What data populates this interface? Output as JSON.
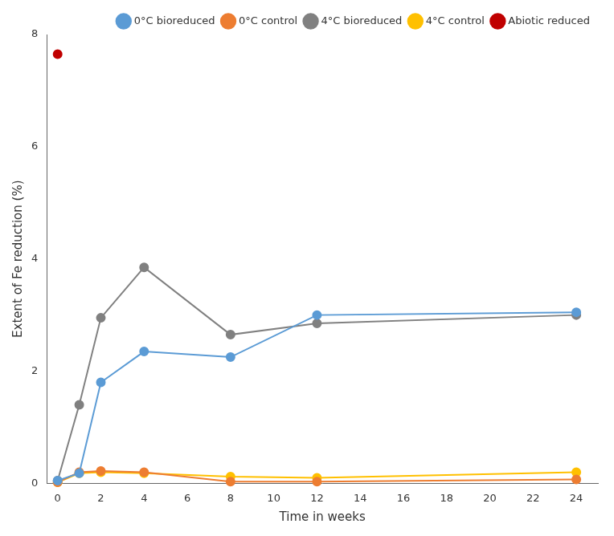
{
  "chart_data": {
    "type": "line",
    "xlabel": "Time in weeks",
    "ylabel": "Extent of Fe reduction (%)",
    "xlim": [
      -0.5,
      25
    ],
    "ylim": [
      0,
      8
    ],
    "xticks": [
      0,
      2,
      4,
      6,
      8,
      10,
      12,
      14,
      16,
      18,
      20,
      22,
      24
    ],
    "yticks": [
      0,
      2,
      4,
      6,
      8
    ],
    "grid": false,
    "legend": "upper right",
    "marker": "circle",
    "series": [
      {
        "name": "0°C bioreduced",
        "color": "#5B9BD5",
        "type": "line",
        "x": [
          0,
          1,
          2,
          4,
          8,
          12,
          24
        ],
        "values": [
          0.05,
          0.18,
          1.8,
          2.35,
          2.25,
          3.0,
          3.05
        ]
      },
      {
        "name": "0°C control",
        "color": "#ED7D31",
        "type": "line",
        "x": [
          0,
          1,
          2,
          4,
          8,
          12,
          24
        ],
        "values": [
          0.02,
          0.2,
          0.22,
          0.2,
          0.03,
          0.03,
          0.07
        ]
      },
      {
        "name": "4°C bioreduced",
        "color": "#808080",
        "type": "line",
        "x": [
          0,
          1,
          2,
          4,
          8,
          12,
          24
        ],
        "values": [
          0.05,
          1.4,
          2.95,
          3.85,
          2.65,
          2.85,
          3.0
        ]
      },
      {
        "name": "4°C control",
        "color": "#FFC000",
        "type": "line",
        "x": [
          0,
          1,
          2,
          4,
          8,
          12,
          24
        ],
        "values": [
          0.02,
          0.18,
          0.2,
          0.18,
          0.12,
          0.1,
          0.2
        ]
      },
      {
        "name": "Abiotic reduced",
        "color": "#C00000",
        "type": "scatter",
        "x": [
          0
        ],
        "values": [
          7.65
        ]
      }
    ]
  }
}
